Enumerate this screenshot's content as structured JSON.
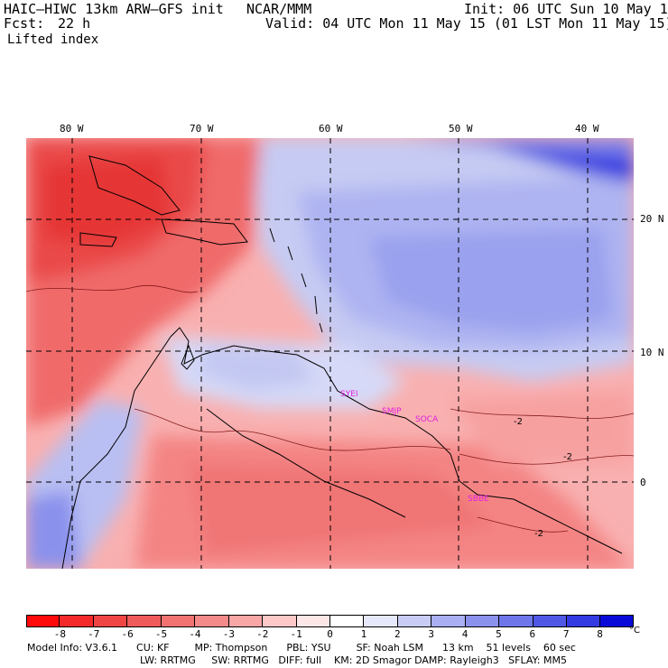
{
  "header": {
    "model": "HAIC–HIWC 13km ARW–GFS init",
    "center": "NCAR/MMM",
    "init": "Init: 06 UTC Sun 10 May 15",
    "fcst_label": "Fcst:",
    "fcst_value": "22 h",
    "valid": "Valid: 04 UTC Mon 11 May 15 (01 LST Mon 11 May 15)",
    "field": "Lifted index"
  },
  "map": {
    "lon_labels": [
      "80 W",
      "70 W",
      "60 W",
      "50 W",
      "40 W"
    ],
    "lat_labels": [
      "20 N",
      "10 N",
      "0"
    ],
    "stations": [
      "SYEI",
      "SMJP",
      "SOCA",
      "SBBE"
    ],
    "contour_labels": [
      "-2",
      "-2",
      "-2"
    ]
  },
  "colorbar": {
    "unit": "°C",
    "ticks": [
      "-8",
      "-7",
      "-6",
      "-5",
      "-4",
      "-3",
      "-2",
      "-1",
      "0",
      "1",
      "2",
      "3",
      "4",
      "5",
      "6",
      "7",
      "8"
    ],
    "colors": [
      "#ff0a0a",
      "#f42a2a",
      "#f04545",
      "#ef5a5a",
      "#f27272",
      "#f58a8a",
      "#f9a6a6",
      "#fcc8c8",
      "#fde6e6",
      "#ffffff",
      "#e6e8fb",
      "#c9cdf6",
      "#a9aff2",
      "#8b92ee",
      "#6e76ea",
      "#5158e6",
      "#353be3",
      "#0a0ad8"
    ]
  },
  "info": {
    "line1": "Model Info: V3.6.1      CU: KF        MP: Thompson      PBL: YSU        SF: Noah LSM      13 km    51 levels    60 sec",
    "line2": "LW: RRTMG     SW: RRTMG   DIFF: full    KM: 2D Smagor DAMP: Rayleigh3   SFLAY: MM5"
  }
}
